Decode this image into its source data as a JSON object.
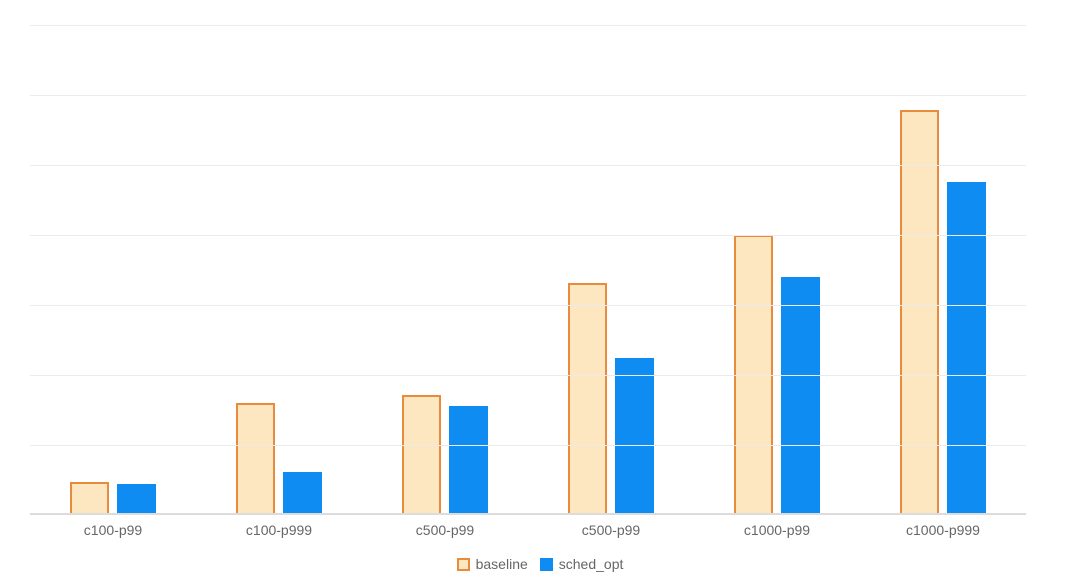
{
  "chart_data": {
    "type": "bar",
    "title": "",
    "xlabel": "",
    "ylabel": "",
    "categories": [
      "c100-p99",
      "c100-p999",
      "c500-p99",
      "c500-p99",
      "c1000-p99",
      "c1000-p999"
    ],
    "series": [
      {
        "name": "baseline",
        "fill": "#FCE7C0",
        "border": "#E98B3D",
        "values": [
          0.44,
          1.57,
          1.69,
          3.29,
          3.97,
          5.76
        ]
      },
      {
        "name": "sched_opt",
        "fill": "#0E8CF1",
        "border": null,
        "values": [
          0.41,
          0.59,
          1.53,
          2.21,
          3.37,
          4.73
        ]
      }
    ],
    "ylim": [
      0,
      7
    ],
    "y_tick_labels_visible": false,
    "value_note": "No y-axis tick labels are rendered; values are estimated in gridline units (7 equal unlabeled intervals).",
    "grid": true,
    "legend_position": "bottom"
  },
  "style_colors": {
    "background": "#ffffff",
    "gridline": "#ebebeb",
    "axis_line": "#dcdcdc",
    "label_text": "#666666",
    "baseline_fill": "#FCE7C0",
    "baseline_border": "#E98B3D",
    "sched_opt_fill": "#0E8CF1"
  }
}
